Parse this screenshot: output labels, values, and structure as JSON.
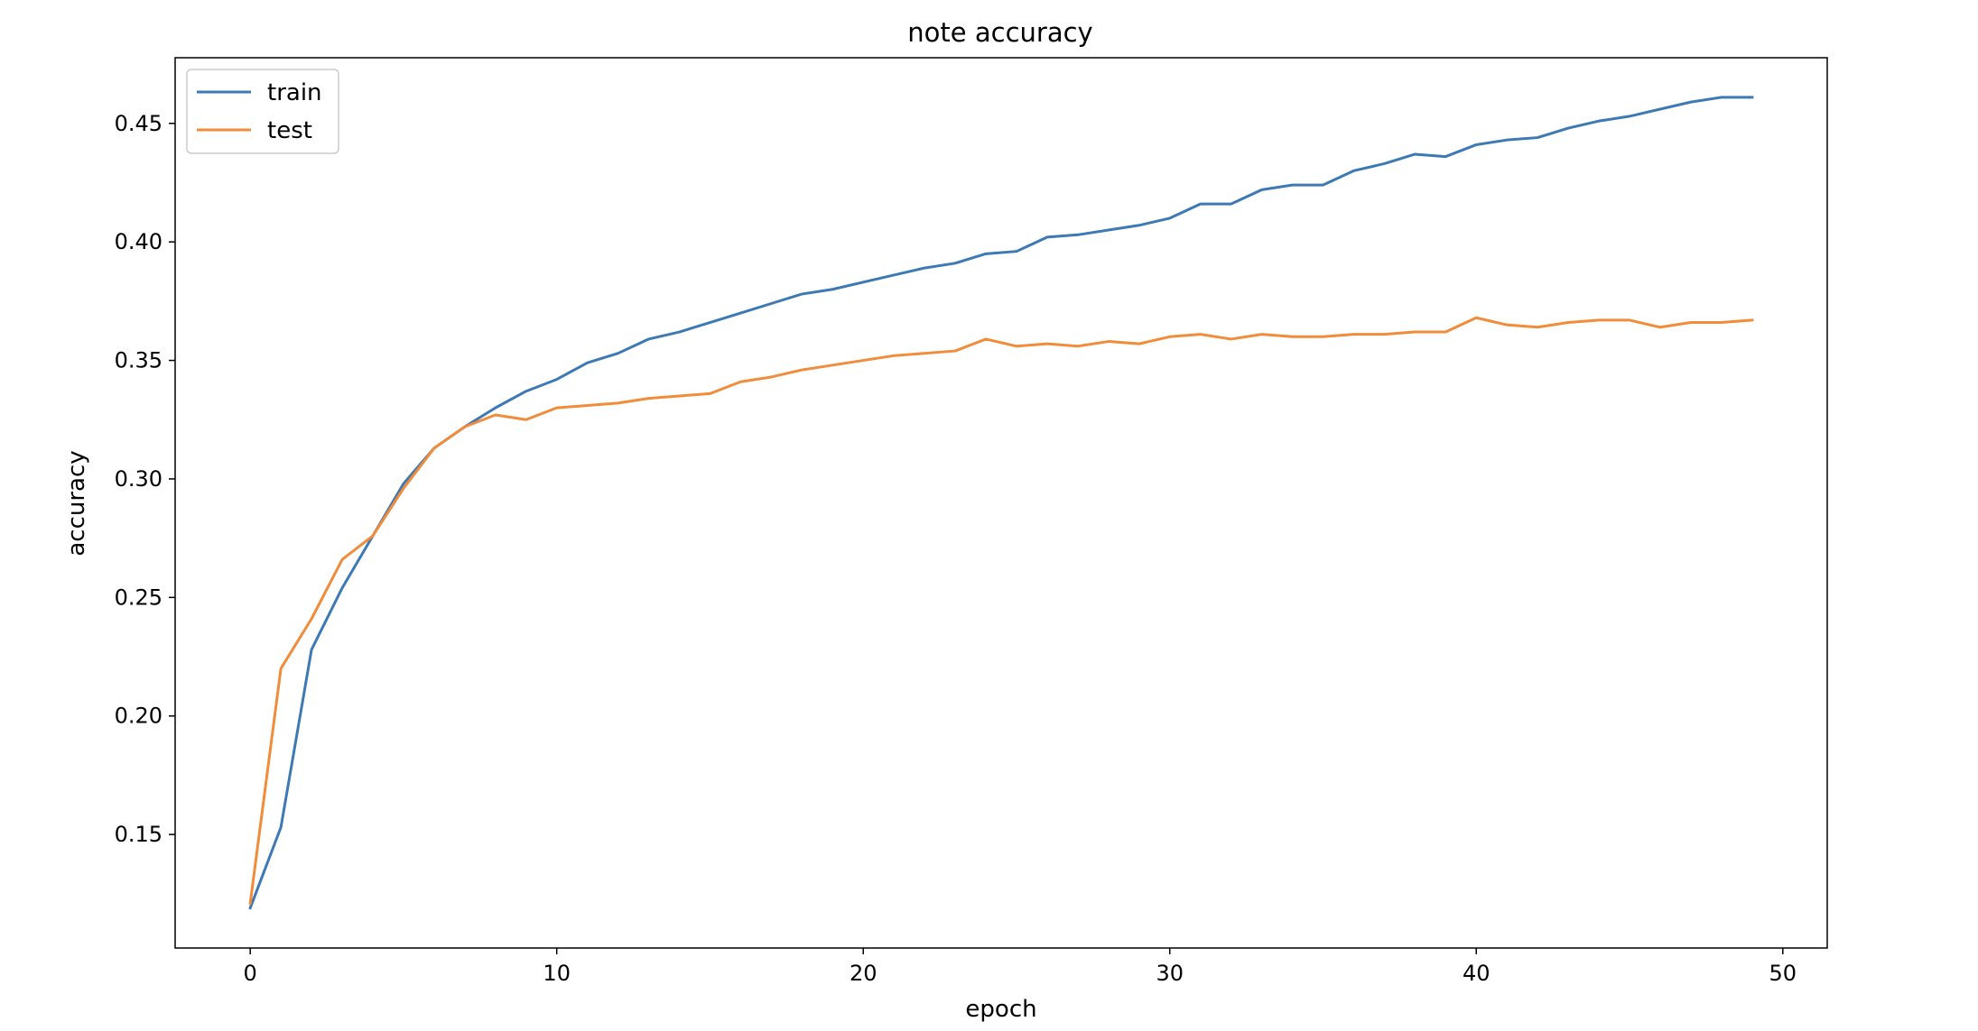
{
  "chart_data": {
    "type": "line",
    "title": "note accuracy",
    "xlabel": "epoch",
    "ylabel": "accuracy",
    "xlim": [
      -2.45,
      51.45
    ],
    "ylim": [
      0.1021,
      0.4777
    ],
    "xticks": [
      0,
      10,
      20,
      30,
      40,
      50
    ],
    "xtick_labels": [
      "0",
      "10",
      "20",
      "30",
      "40",
      "50"
    ],
    "yticks": [
      0.15,
      0.2,
      0.25,
      0.3,
      0.35,
      0.4,
      0.45
    ],
    "ytick_labels": [
      "0.15",
      "0.20",
      "0.25",
      "0.30",
      "0.35",
      "0.40",
      "0.45"
    ],
    "grid": false,
    "legend_position": "top-left",
    "x": [
      0,
      1,
      2,
      3,
      4,
      5,
      6,
      7,
      8,
      9,
      10,
      11,
      12,
      13,
      14,
      15,
      16,
      17,
      18,
      19,
      20,
      21,
      22,
      23,
      24,
      25,
      26,
      27,
      28,
      29,
      30,
      31,
      32,
      33,
      34,
      35,
      36,
      37,
      38,
      39,
      40,
      41,
      42,
      43,
      44,
      45,
      46,
      47,
      48,
      49
    ],
    "series": [
      {
        "name": "train",
        "color": "#3d79b4",
        "values": [
          0.119,
          0.153,
          0.228,
          0.254,
          0.276,
          0.298,
          0.313,
          0.322,
          0.33,
          0.337,
          0.342,
          0.349,
          0.353,
          0.359,
          0.362,
          0.366,
          0.37,
          0.374,
          0.378,
          0.38,
          0.383,
          0.386,
          0.389,
          0.391,
          0.395,
          0.396,
          0.402,
          0.403,
          0.405,
          0.407,
          0.41,
          0.416,
          0.416,
          0.422,
          0.424,
          0.424,
          0.43,
          0.433,
          0.437,
          0.436,
          0.441,
          0.443,
          0.444,
          0.448,
          0.451,
          0.453,
          0.456,
          0.459,
          0.461,
          0.461
        ]
      },
      {
        "name": "test",
        "color": "#f08c3a",
        "values": [
          0.121,
          0.22,
          0.241,
          0.266,
          0.276,
          0.296,
          0.313,
          0.322,
          0.327,
          0.325,
          0.33,
          0.331,
          0.332,
          0.334,
          0.335,
          0.336,
          0.341,
          0.343,
          0.346,
          0.348,
          0.35,
          0.352,
          0.353,
          0.354,
          0.359,
          0.356,
          0.357,
          0.356,
          0.358,
          0.357,
          0.36,
          0.361,
          0.359,
          0.361,
          0.36,
          0.36,
          0.361,
          0.361,
          0.362,
          0.362,
          0.368,
          0.365,
          0.364,
          0.366,
          0.367,
          0.367,
          0.364,
          0.366,
          0.366,
          0.367
        ]
      }
    ]
  }
}
